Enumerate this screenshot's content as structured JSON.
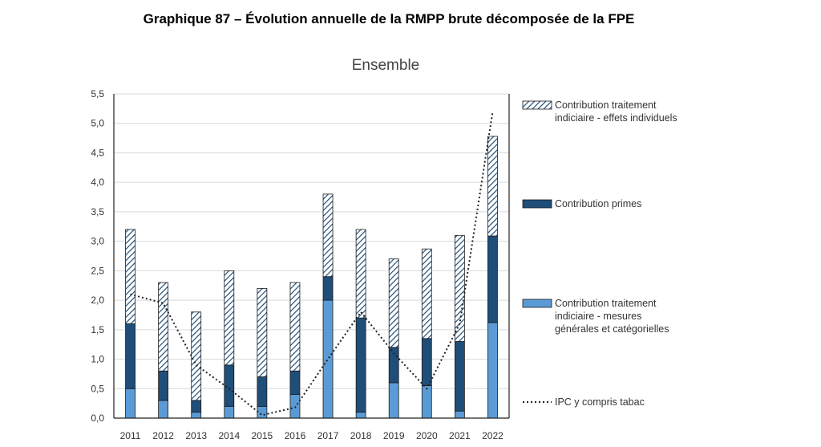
{
  "page": {
    "title": "Graphique 87 – Évolution annuelle de la RMPP brute décomposée de la FPE"
  },
  "chart_data": {
    "type": "bar",
    "subtitle": "Ensemble",
    "categories": [
      "2011",
      "2012",
      "2013",
      "2014",
      "2015",
      "2016",
      "2017",
      "2018",
      "2019",
      "2020",
      "2021",
      "2022"
    ],
    "series": [
      {
        "name": "Contribution traitement indiciaire - mesures générales et catégorielles",
        "role": "stack-bottom",
        "values": [
          0.5,
          0.3,
          0.1,
          0.2,
          0.2,
          0.4,
          2.0,
          0.1,
          0.6,
          0.55,
          0.12,
          1.62
        ]
      },
      {
        "name": "Contribution primes",
        "role": "stack-middle",
        "values": [
          1.1,
          0.5,
          0.2,
          0.7,
          0.5,
          0.4,
          0.4,
          1.6,
          0.6,
          0.8,
          1.18,
          1.47
        ]
      },
      {
        "name": "Contribution traitement indiciaire - effets individuels",
        "role": "stack-top",
        "values": [
          1.6,
          1.5,
          1.5,
          1.6,
          1.5,
          1.5,
          1.4,
          1.5,
          1.5,
          1.52,
          1.8,
          1.69
        ]
      },
      {
        "name": "IPC y compris tabac",
        "role": "line",
        "values": [
          2.1,
          1.95,
          0.9,
          0.5,
          0.05,
          0.18,
          1.0,
          1.8,
          1.1,
          0.5,
          1.6,
          5.2
        ]
      }
    ],
    "ylim": [
      0,
      5.5
    ],
    "yticks": [
      "0,0",
      "0,5",
      "1,0",
      "1,5",
      "2,0",
      "2,5",
      "3,0",
      "3,5",
      "4,0",
      "4,5",
      "5,0",
      "5,5"
    ],
    "grid": true,
    "legend_position": "right",
    "legend": {
      "top_lines": [
        "Contribution traitement",
        "indiciaire - effets individuels"
      ],
      "middle_lines": [
        "Contribution primes"
      ],
      "bottom_lines": [
        "Contribution traitement",
        "indiciaire - mesures",
        "générales et catégorielles"
      ],
      "line_lines": [
        "IPC y compris tabac"
      ]
    },
    "colors": {
      "bottom": "#5b9bd5",
      "middle": "#1f4e79",
      "top_hatch": "#1f4e79",
      "grid": "#d9d9d9",
      "line": "#222222"
    }
  }
}
